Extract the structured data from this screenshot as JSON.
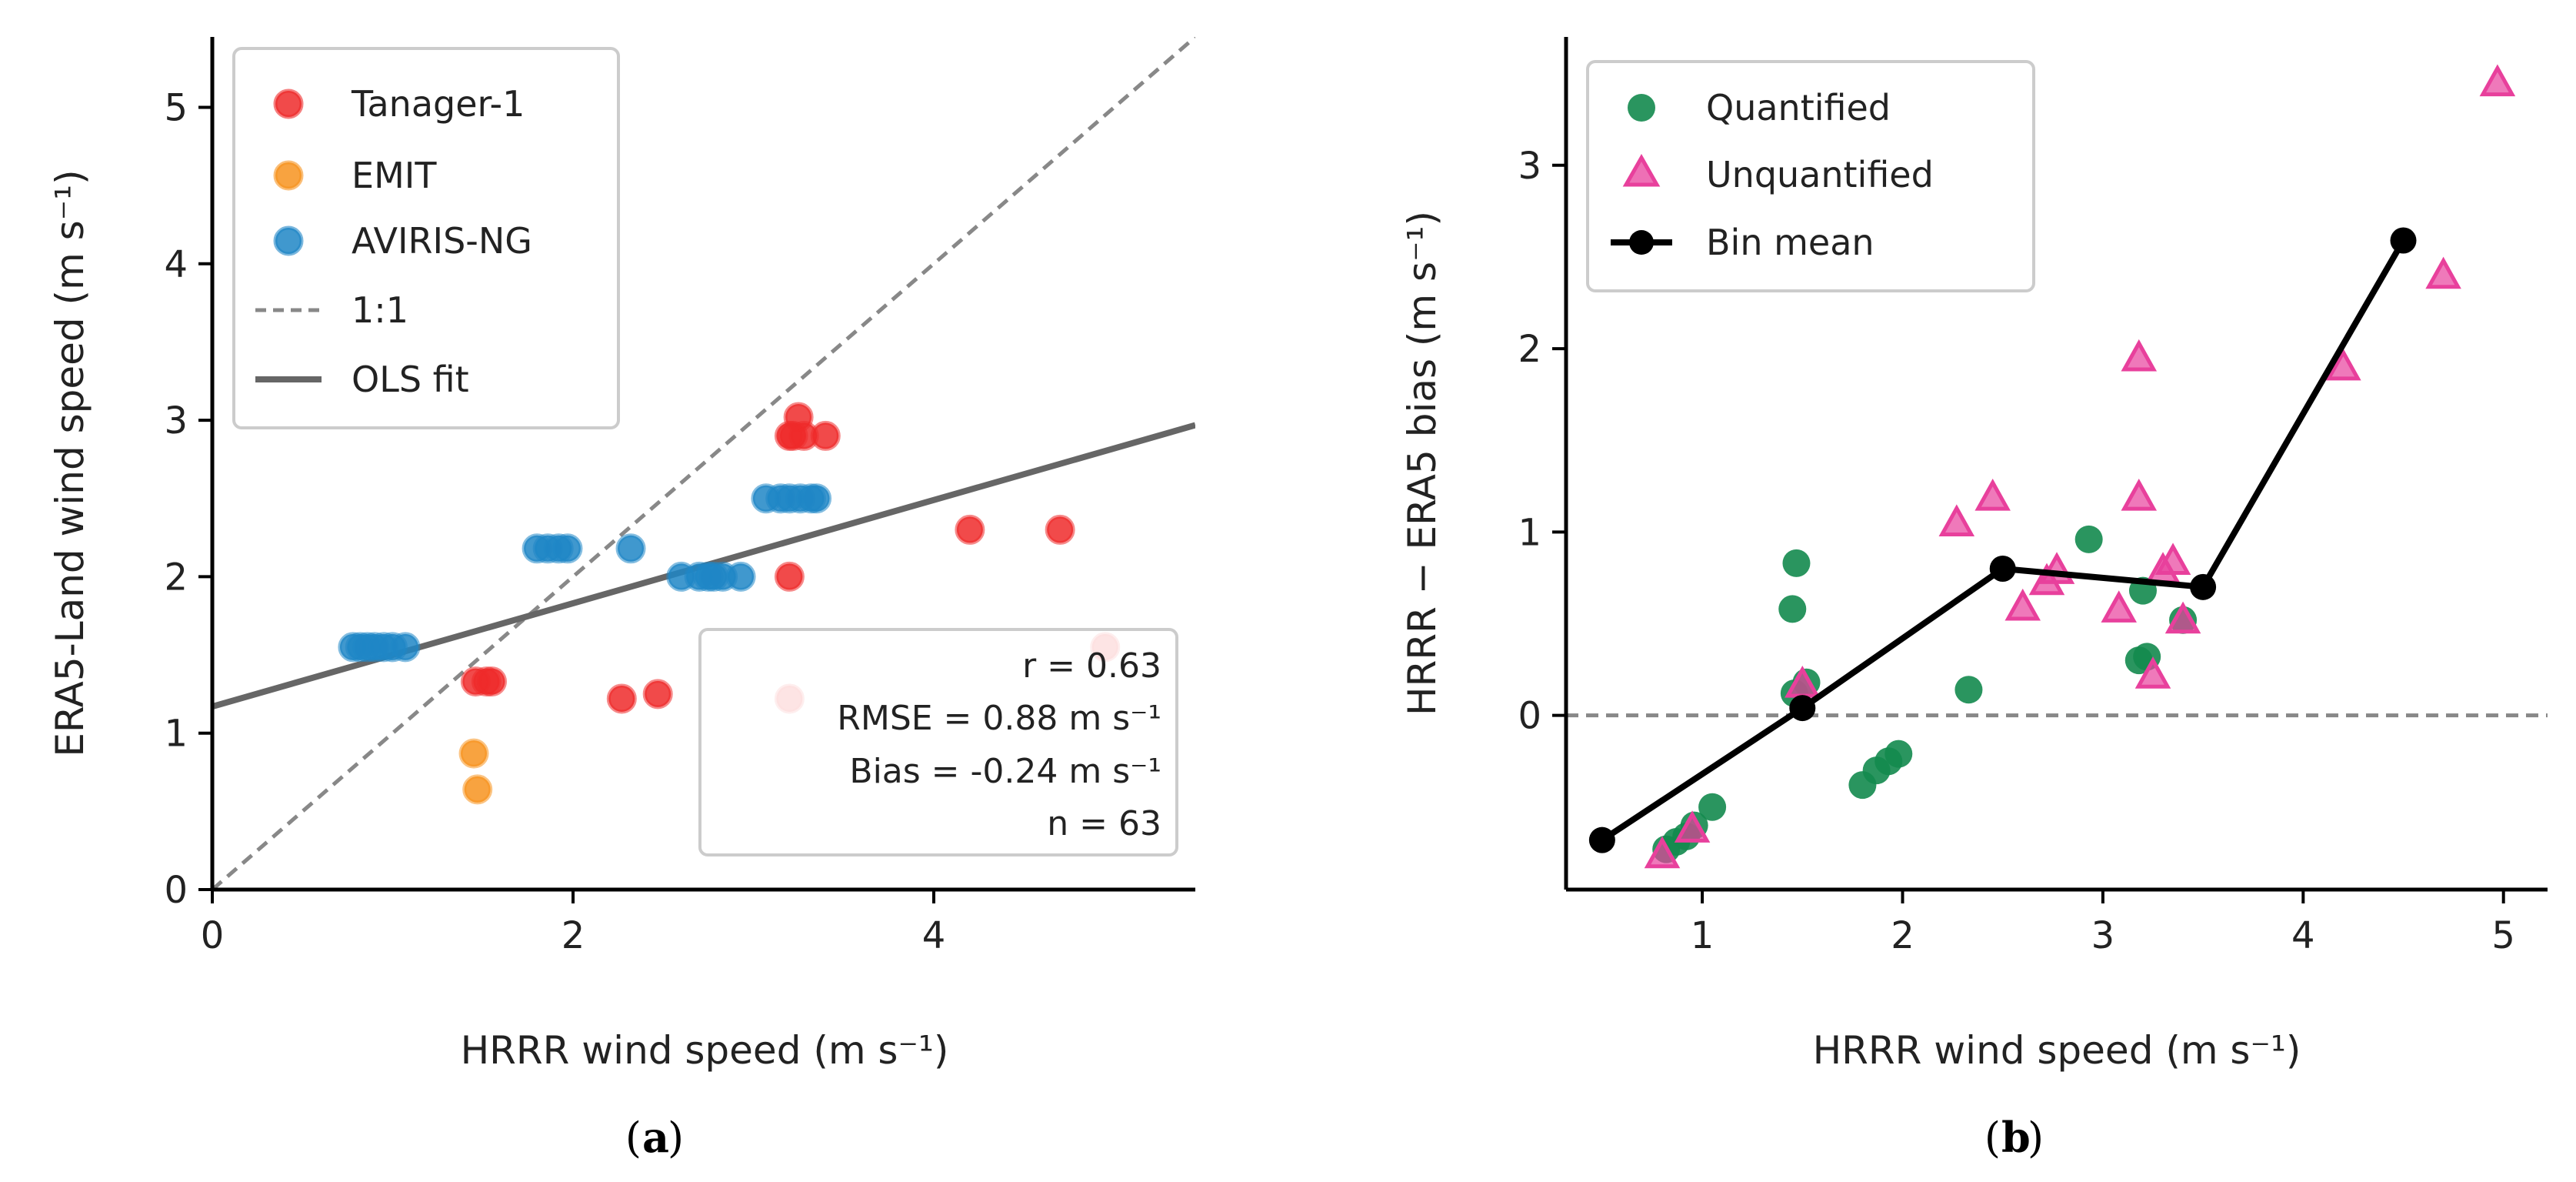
{
  "colors": {
    "tanager": "#ee2a2a",
    "emit": "#f7931e",
    "aviris": "#1f86c6",
    "one_to_one": "#888888",
    "ols": "#666666",
    "quantified": "#138a4e",
    "unquantified": "#e8409c",
    "bin_mean": "#000000",
    "zero_line": "#888888"
  },
  "chart_data": [
    {
      "type": "scatter",
      "panel": "(a)",
      "caption_letter": "a",
      "xlabel": "HRRR wind speed (m s⁻¹)",
      "ylabel": "ERA5-Land wind speed (m s⁻¹)",
      "xlim": [
        0,
        5.45
      ],
      "ylim": [
        0,
        5.45
      ],
      "xticks": [
        0,
        2,
        4
      ],
      "yticks": [
        0,
        1,
        2,
        3,
        4,
        5
      ],
      "legend_position": "top-left",
      "series": [
        {
          "name": "Tanager-1",
          "color_key": "tanager",
          "marker": "circle",
          "points": [
            [
              3.22,
              2.9
            ],
            [
              3.28,
              2.9
            ],
            [
              3.25,
              3.02
            ],
            [
              3.4,
              2.9
            ],
            [
              3.2,
              2.9
            ],
            [
              1.46,
              1.33
            ],
            [
              1.52,
              1.33
            ],
            [
              1.55,
              1.33
            ],
            [
              2.27,
              1.22
            ],
            [
              2.47,
              1.25
            ],
            [
              3.2,
              2.0
            ],
            [
              4.2,
              2.3
            ],
            [
              4.7,
              2.3
            ],
            [
              4.95,
              1.55
            ],
            [
              3.2,
              1.22
            ]
          ]
        },
        {
          "name": "EMIT",
          "color_key": "emit",
          "marker": "circle",
          "points": [
            [
              1.45,
              0.87
            ],
            [
              1.47,
              0.64
            ]
          ]
        },
        {
          "name": "AVIRIS-NG",
          "color_key": "aviris",
          "marker": "circle",
          "points": [
            [
              0.78,
              1.55
            ],
            [
              0.82,
              1.55
            ],
            [
              0.86,
              1.55
            ],
            [
              0.9,
              1.55
            ],
            [
              0.95,
              1.55
            ],
            [
              1.0,
              1.55
            ],
            [
              1.07,
              1.55
            ],
            [
              1.8,
              2.18
            ],
            [
              1.86,
              2.18
            ],
            [
              1.92,
              2.18
            ],
            [
              1.97,
              2.18
            ],
            [
              2.32,
              2.18
            ],
            [
              2.6,
              2.0
            ],
            [
              2.7,
              2.0
            ],
            [
              2.75,
              2.0
            ],
            [
              2.78,
              2.0
            ],
            [
              2.83,
              2.0
            ],
            [
              2.93,
              2.0
            ],
            [
              3.07,
              2.5
            ],
            [
              3.15,
              2.5
            ],
            [
              3.2,
              2.5
            ],
            [
              3.26,
              2.5
            ],
            [
              3.32,
              2.5
            ],
            [
              3.35,
              2.5
            ]
          ]
        }
      ],
      "reference_lines": [
        {
          "name": "1:1",
          "color_key": "one_to_one",
          "style": "dashed",
          "slope": 1.0,
          "intercept": 0.0
        },
        {
          "name": "OLS fit",
          "color_key": "ols",
          "style": "solid",
          "slope": 0.33,
          "intercept": 1.17
        }
      ],
      "stats": {
        "r": "r = 0.63",
        "rmse": "RMSE = 0.88 m s⁻¹",
        "bias": "Bias = -0.24 m s⁻¹",
        "n": "n = 63"
      }
    },
    {
      "type": "scatter",
      "panel": "(b)",
      "caption_letter": "b",
      "xlabel": "HRRR wind speed (m s⁻¹)",
      "ylabel": "HRRR − ERA5 bias (m s⁻¹)",
      "xlim": [
        0.32,
        5.22
      ],
      "ylim": [
        -0.95,
        3.7
      ],
      "xticks": [
        1,
        2,
        3,
        4,
        5
      ],
      "yticks": [
        0,
        1,
        2,
        3
      ],
      "legend_position": "top-left",
      "series": [
        {
          "name": "Quantified",
          "color_key": "quantified",
          "marker": "circle",
          "points": [
            [
              0.82,
              -0.73
            ],
            [
              0.87,
              -0.69
            ],
            [
              0.92,
              -0.66
            ],
            [
              0.96,
              -0.6
            ],
            [
              1.05,
              -0.5
            ],
            [
              1.45,
              0.58
            ],
            [
              1.47,
              0.83
            ],
            [
              1.46,
              0.12
            ],
            [
              1.52,
              0.18
            ],
            [
              1.8,
              -0.38
            ],
            [
              1.87,
              -0.3
            ],
            [
              1.93,
              -0.25
            ],
            [
              1.98,
              -0.21
            ],
            [
              2.33,
              0.14
            ],
            [
              2.93,
              0.96
            ],
            [
              3.18,
              0.3
            ],
            [
              3.2,
              0.68
            ],
            [
              3.22,
              0.32
            ],
            [
              3.4,
              0.52
            ]
          ]
        },
        {
          "name": "Unquantified",
          "color_key": "unquantified",
          "marker": "triangle",
          "points": [
            [
              0.8,
              -0.76
            ],
            [
              0.95,
              -0.62
            ],
            [
              1.5,
              0.17
            ],
            [
              2.27,
              1.05
            ],
            [
              2.45,
              1.19
            ],
            [
              2.6,
              0.59
            ],
            [
              2.72,
              0.73
            ],
            [
              2.77,
              0.79
            ],
            [
              3.08,
              0.58
            ],
            [
              3.18,
              1.95
            ],
            [
              3.18,
              1.19
            ],
            [
              3.25,
              0.22
            ],
            [
              3.3,
              0.79
            ],
            [
              3.35,
              0.84
            ],
            [
              3.4,
              0.52
            ],
            [
              4.2,
              1.9
            ],
            [
              4.7,
              2.4
            ],
            [
              4.97,
              3.45
            ]
          ]
        },
        {
          "name": "Bin mean",
          "color_key": "bin_mean",
          "marker": "line-circle",
          "points": [
            [
              0.5,
              -0.68
            ],
            [
              1.5,
              0.04
            ],
            [
              2.5,
              0.8
            ],
            [
              3.5,
              0.7
            ],
            [
              4.5,
              2.59
            ]
          ]
        }
      ],
      "reference_lines": [
        {
          "name": "",
          "color_key": "zero_line",
          "style": "dashed",
          "slope": 0.0,
          "intercept": 0.0
        }
      ]
    }
  ]
}
